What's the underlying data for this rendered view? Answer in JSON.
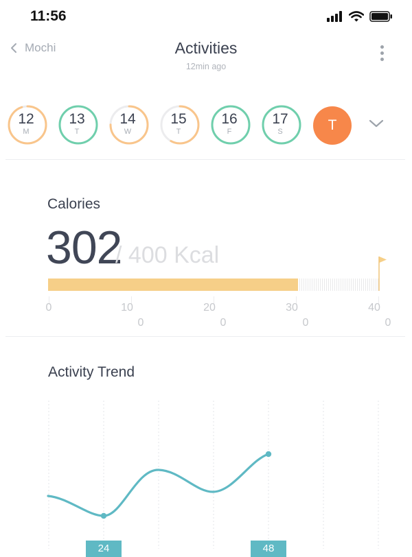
{
  "status_bar": {
    "time": "11:56"
  },
  "nav": {
    "back_label": "Mochi",
    "title": "Activities",
    "subtitle": "12min ago"
  },
  "days": [
    {
      "num": "12",
      "letter": "M",
      "progress": 0.95,
      "color": "#f9c58b"
    },
    {
      "num": "13",
      "letter": "T",
      "progress": 1.0,
      "color": "#6fcfac"
    },
    {
      "num": "14",
      "letter": "W",
      "progress": 0.75,
      "color": "#f9c58b"
    },
    {
      "num": "15",
      "letter": "T",
      "progress": 0.58,
      "color": "#f9c58b"
    },
    {
      "num": "16",
      "letter": "F",
      "progress": 1.0,
      "color": "#6fcfac"
    },
    {
      "num": "17",
      "letter": "S",
      "progress": 1.0,
      "color": "#6fcfac"
    }
  ],
  "today": {
    "label": "T",
    "color": "#f7874a"
  },
  "calories": {
    "heading": "Calories",
    "value": "302",
    "slash": "/",
    "goal_text": "400 Kcal",
    "value_num": 302,
    "goal_num": 400,
    "ticks": [
      {
        "line1": "0",
        "line2": ""
      },
      {
        "line1": "10",
        "line2": "0"
      },
      {
        "line1": "20",
        "line2": "0"
      },
      {
        "line1": "30",
        "line2": "0"
      },
      {
        "line1": "40",
        "line2": "0"
      }
    ],
    "bar_color": "#f6cf88",
    "flag_color": "#f6cf88"
  },
  "trend": {
    "heading": "Activity Trend",
    "line_color": "#5fb9c4",
    "labels": [
      "24",
      "48"
    ]
  }
}
